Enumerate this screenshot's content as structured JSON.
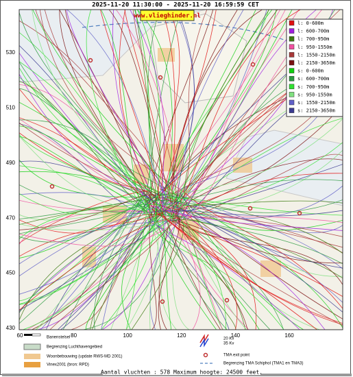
{
  "header": {
    "title": "2025-11-20 11:30:00 - 2025-11-20 16:59:59 CET",
    "site": "www.vlieghinder.nl"
  },
  "legend": [
    {
      "label": "l: 0-600m",
      "color": "#e01010"
    },
    {
      "label": "l: 600-700m",
      "color": "#a020e0"
    },
    {
      "label": "l: 700-950m",
      "color": "#3c7a10"
    },
    {
      "label": "l: 950-1550m",
      "color": "#f050a0"
    },
    {
      "label": "l: 1550-2150m",
      "color": "#a83838"
    },
    {
      "label": "l: 2150-3650m",
      "color": "#7a1010"
    },
    {
      "label": "s: 0-600m",
      "color": "#10d010"
    },
    {
      "label": "s: 600-700m",
      "color": "#2a9a40"
    },
    {
      "label": "s: 700-950m",
      "color": "#30e030"
    },
    {
      "label": "s: 950-1550m",
      "color": "#80e080"
    },
    {
      "label": "s: 1550-2150m",
      "color": "#6060c8"
    },
    {
      "label": "s: 2150-3650m",
      "color": "#3a3a90"
    }
  ],
  "y_ticks": [
    530,
    510,
    490,
    470,
    450,
    430
  ],
  "x_ticks": [
    60,
    80,
    100,
    120,
    140,
    160
  ],
  "map_legend": {
    "runways": "Banenstelsel",
    "airport_boundary": "Begrenzing Luchthavengebied",
    "housing": "Woonbebouwing (update RWS-MD 2001)",
    "vinex": "Vinex2001 (bron: RPD)",
    "power_lines": [
      "20 Kv",
      "35 Kv"
    ],
    "tma_exit": "TMA exit point",
    "tma_boundary": "Begrenzing TMA Schiphol  (TMA1 en TMA3)"
  },
  "footer": "Aantal vluchten : 578 Maximum hoogte: 24500 feet."
}
